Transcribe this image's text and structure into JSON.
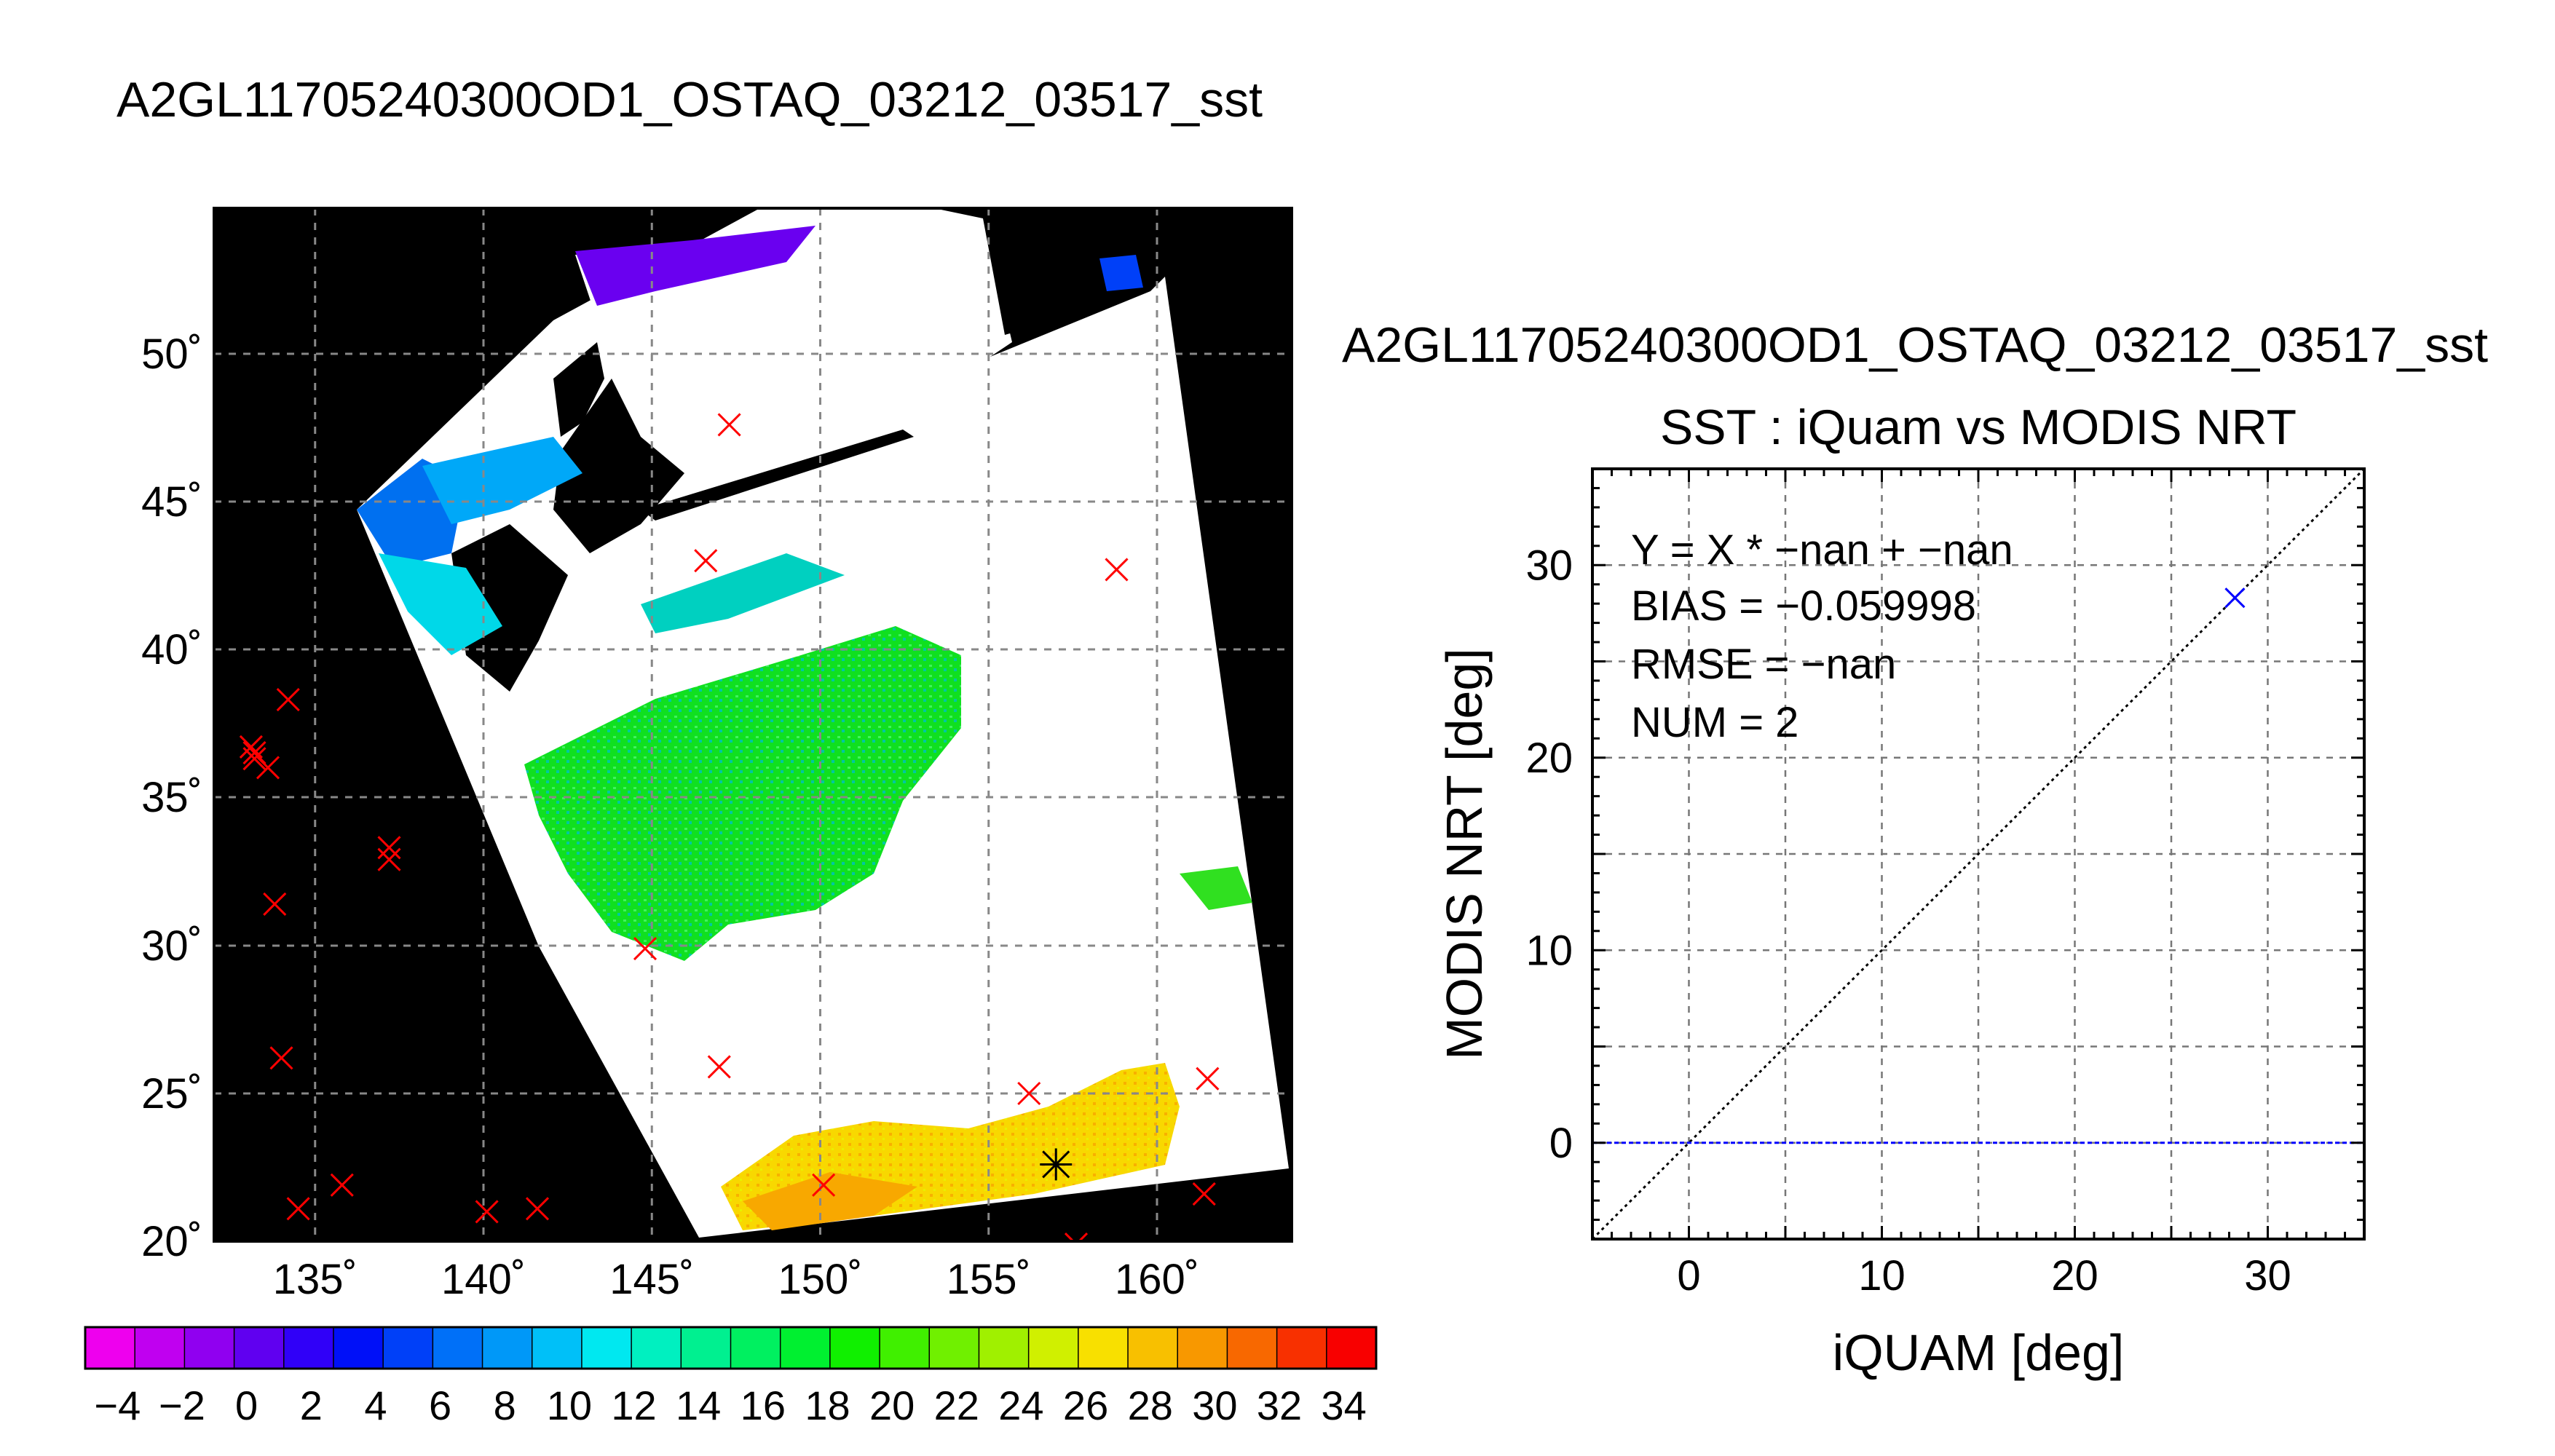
{
  "map": {
    "title": "A2GL11705240300OD1_OSTAQ_03212_03517_sst",
    "lon_ticks": [
      "135˚",
      "140˚",
      "145˚",
      "150˚",
      "155˚",
      "160˚"
    ],
    "lat_ticks": [
      "50˚",
      "45˚",
      "40˚",
      "35˚",
      "30˚",
      "25˚",
      "20˚"
    ],
    "marker_color": "#ff0000",
    "star_color": "#000000"
  },
  "colorbar": {
    "labels": [
      "−4",
      "−2",
      "0",
      "2",
      "4",
      "6",
      "8",
      "10",
      "12",
      "14",
      "16",
      "18",
      "20",
      "22",
      "24",
      "26",
      "28",
      "30",
      "32",
      "34"
    ],
    "colors": [
      "#ee00ee",
      "#c000f0",
      "#9000f0",
      "#6000f0",
      "#3000f8",
      "#0010f8",
      "#0040f8",
      "#0070f8",
      "#0098f8",
      "#00c0f8",
      "#00e8f0",
      "#00f0c0",
      "#00f090",
      "#00f060",
      "#00f030",
      "#10f000",
      "#40f000",
      "#70f000",
      "#a0f000",
      "#d0f000",
      "#f8e000",
      "#f8c000",
      "#f89800",
      "#f86800",
      "#f83000",
      "#f80000"
    ]
  },
  "scatter": {
    "file_title": "A2GL11705240300OD1_OSTAQ_03212_03517_sst",
    "title": "SST : iQuam vs MODIS NRT",
    "stats": {
      "fit": "Y = X * −nan + −nan",
      "bias": "BIAS = −0.059998",
      "rmse": "RMSE = −nan",
      "num": "NUM = 2"
    },
    "x_ticks": [
      "0",
      "10",
      "20",
      "30"
    ],
    "y_ticks": [
      "0",
      "10",
      "20",
      "30"
    ]
  },
  "chart_data": [
    {
      "type": "scatter",
      "title": "SST : iQuam vs MODIS NRT",
      "xlabel": "iQUAM [deg]",
      "ylabel": "MODIS NRT [deg]",
      "xlim": [
        -5,
        35
      ],
      "ylim": [
        -5,
        35
      ],
      "grid": true,
      "series": [
        {
          "name": "",
          "color": "#0000ff",
          "marker": "x",
          "points": [
            [
              28.3,
              28.3
            ]
          ]
        }
      ],
      "reference_lines": [
        {
          "style": "dotted",
          "color": "#000000",
          "kind": "identity"
        },
        {
          "style": "dashed",
          "color": "#0000ff",
          "kind": "y",
          "value": 0
        }
      ]
    },
    {
      "type": "heatmap",
      "title": "A2GL11705240300OD1_OSTAQ_03212_03517_sst",
      "xlim": [
        132,
        164
      ],
      "ylim": [
        20,
        55
      ],
      "grid": true,
      "colorbar_range": [
        -5,
        35
      ],
      "buoy_markers": [
        [
          147.3,
          47.6
        ],
        [
          146.6,
          43.0
        ],
        [
          158.8,
          42.7
        ],
        [
          147.0,
          25.9
        ],
        [
          144.8,
          29.9
        ],
        [
          134.2,
          38.3
        ],
        [
          133.1,
          36.7
        ],
        [
          133.2,
          36.3
        ],
        [
          133.6,
          36.0
        ],
        [
          133.2,
          36.5
        ],
        [
          137.2,
          33.3
        ],
        [
          137.2,
          32.9
        ],
        [
          133.8,
          31.4
        ],
        [
          134.0,
          26.2
        ],
        [
          135.8,
          21.9
        ],
        [
          140.1,
          21.0
        ],
        [
          141.6,
          21.1
        ],
        [
          134.5,
          21.1
        ],
        [
          150.1,
          21.9
        ],
        [
          156.2,
          25.0
        ],
        [
          161.5,
          25.5
        ],
        [
          161.4,
          21.6
        ],
        [
          157.6,
          19.9
        ]
      ],
      "matchup_markers": [
        [
          157.0,
          22.6
        ]
      ]
    }
  ]
}
